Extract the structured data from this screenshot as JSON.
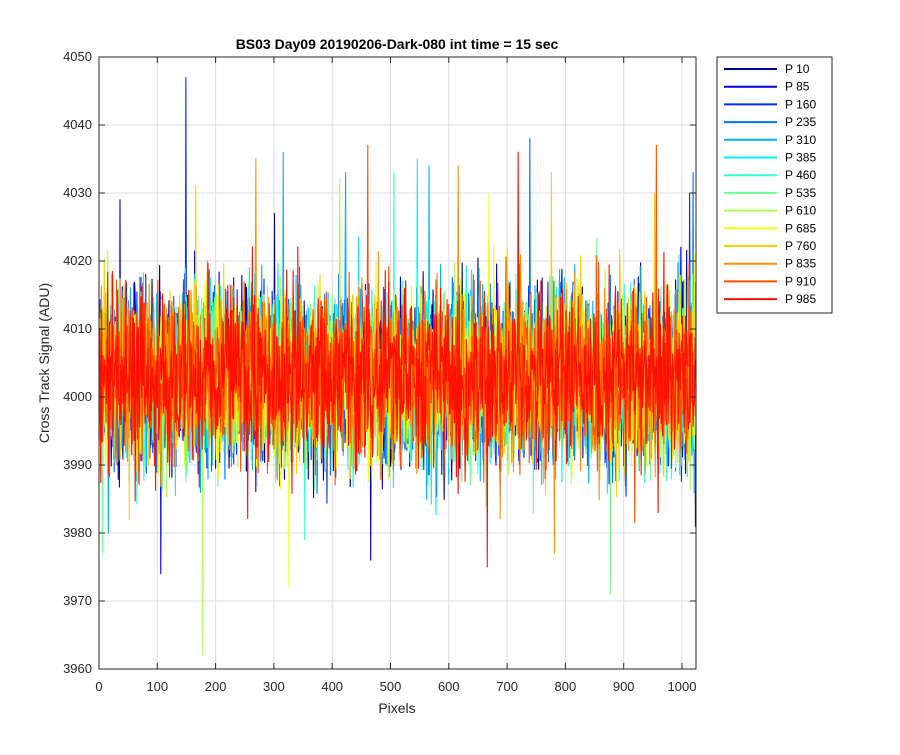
{
  "chart_data": {
    "type": "line",
    "title": "BS03 Day09 20190206-Dark-080 int time = 15 sec",
    "xlabel": "Pixels",
    "ylabel": "Cross Track Signal (ADU)",
    "xlim": [
      0,
      1024
    ],
    "ylim": [
      3960,
      4050
    ],
    "xticks": [
      0,
      100,
      200,
      300,
      400,
      500,
      600,
      700,
      800,
      900,
      1000
    ],
    "yticks": [
      3960,
      3970,
      3980,
      3990,
      4000,
      4010,
      4020,
      4030,
      4040,
      4050
    ],
    "grid": true,
    "legend_position": "outside-top-right",
    "noise_model": {
      "mean": 4003,
      "std": 6,
      "n_points": 1024,
      "note": "Dense per-pixel dark signal; individual samples not legible, values approximated as noise around the mean."
    },
    "series": [
      {
        "name": "P 10",
        "color": "#00008F",
        "seed": 11,
        "spikes": [
          [
            88,
            3993
          ],
          [
            300,
            4027
          ]
        ]
      },
      {
        "name": "P 85",
        "color": "#0000DF",
        "seed": 23,
        "spikes": [
          [
            35,
            4029
          ],
          [
            105,
            3974
          ],
          [
            465,
            3976
          ],
          [
            1022,
            3981
          ]
        ]
      },
      {
        "name": "P 160",
        "color": "#0030FF",
        "seed": 37,
        "spikes": [
          [
            148,
            4047
          ],
          [
            1012,
            4030
          ]
        ]
      },
      {
        "name": "P 235",
        "color": "#0070FF",
        "seed": 41,
        "spikes": [
          [
            738,
            4038
          ],
          [
            1018,
            4033
          ]
        ]
      },
      {
        "name": "P 310",
        "color": "#00B0FF",
        "seed": 53,
        "spikes": [
          [
            315,
            4036
          ],
          [
            422,
            4033
          ],
          [
            565,
            4034
          ],
          [
            15,
            3980
          ]
        ]
      },
      {
        "name": "P 385",
        "color": "#00EFFF",
        "seed": 67,
        "spikes": [
          [
            545,
            4035
          ]
        ]
      },
      {
        "name": "P 460",
        "color": "#30FFCF",
        "seed": 79,
        "spikes": [
          [
            505,
            4033
          ],
          [
            352,
            3979
          ]
        ]
      },
      {
        "name": "P 535",
        "color": "#6FFF8F",
        "seed": 83,
        "spikes": [
          [
            876,
            3971
          ],
          [
            5,
            3977
          ]
        ]
      },
      {
        "name": "P 610",
        "color": "#AFFF50",
        "seed": 97,
        "spikes": [
          [
            177,
            3962
          ],
          [
            412,
            4032
          ]
        ]
      },
      {
        "name": "P 685",
        "color": "#EFFF10",
        "seed": 101,
        "spikes": [
          [
            325,
            3972
          ],
          [
            668,
            4030
          ]
        ]
      },
      {
        "name": "P 760",
        "color": "#FFCF00",
        "seed": 113,
        "spikes": [
          [
            165,
            4031
          ],
          [
            775,
            4033
          ],
          [
            952,
            4030
          ]
        ]
      },
      {
        "name": "P 835",
        "color": "#FF8F00",
        "seed": 127,
        "spikes": [
          [
            268,
            4035
          ],
          [
            615,
            4034
          ],
          [
            780,
            3977
          ]
        ]
      },
      {
        "name": "P 910",
        "color": "#FF5000",
        "seed": 131,
        "spikes": [
          [
            460,
            4037
          ],
          [
            955,
            4037
          ]
        ]
      },
      {
        "name": "P 985",
        "color": "#FF1000",
        "seed": 139,
        "spikes": [
          [
            718,
            4036
          ],
          [
            665,
            3975
          ],
          [
            958,
            3983
          ]
        ]
      }
    ]
  }
}
